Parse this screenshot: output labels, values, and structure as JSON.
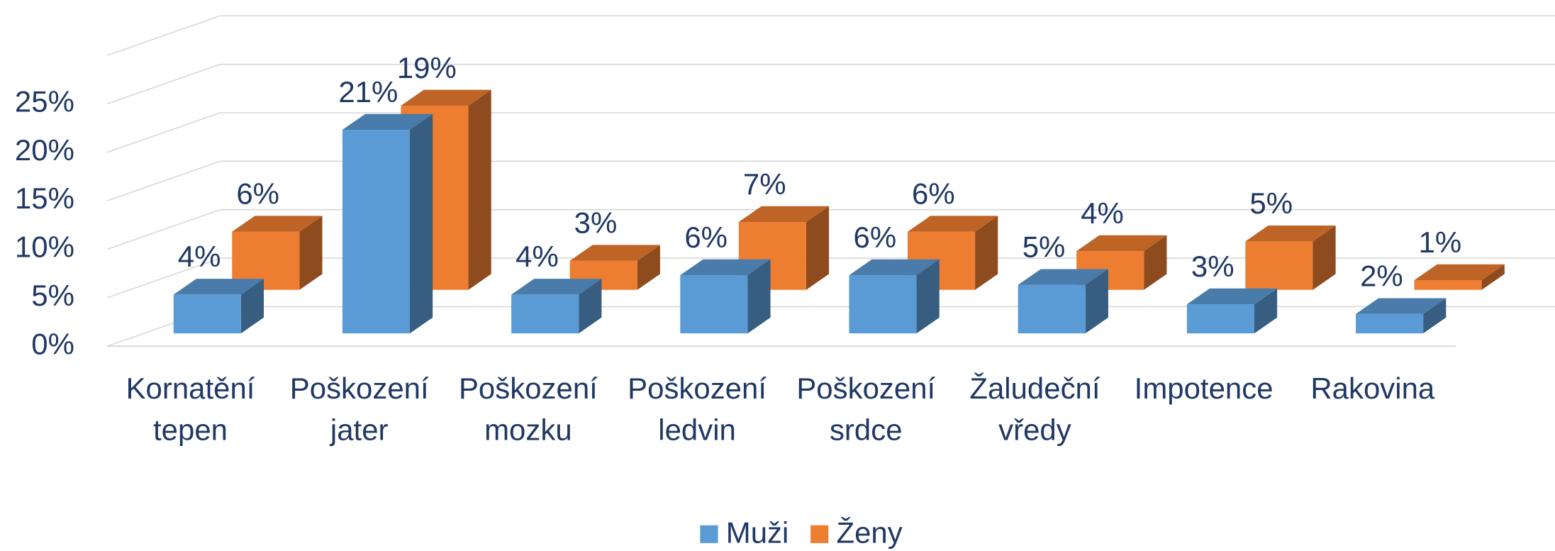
{
  "chart_data": {
    "type": "bar3d",
    "categories": [
      "Kornatění tepen",
      "Poškození jater",
      "Poškození mozku",
      "Poškození ledvin",
      "Poškození srdce",
      "Žaludeční vředy",
      "Impotence",
      "Rakovina"
    ],
    "series": [
      {
        "name": "Muži",
        "color": "#5b9bd5",
        "values": [
          4,
          21,
          4,
          6,
          6,
          5,
          3,
          2
        ],
        "value_labels": [
          "4%",
          "21%",
          "4%",
          "6%",
          "6%",
          "5%",
          "3%",
          "2%"
        ]
      },
      {
        "name": "Ženy",
        "color": "#ed7d31",
        "values": [
          6,
          19,
          3,
          7,
          6,
          4,
          5,
          1
        ],
        "value_labels": [
          "6%",
          "19%",
          "3%",
          "7%",
          "6%",
          "4%",
          "5%",
          "1%"
        ]
      }
    ],
    "ylim": [
      0,
      30
    ],
    "yticks": [
      {
        "value": 0,
        "label": "0%"
      },
      {
        "value": 5,
        "label": "5%"
      },
      {
        "value": 10,
        "label": "10%"
      },
      {
        "value": 15,
        "label": "15%"
      },
      {
        "value": 20,
        "label": "20%"
      },
      {
        "value": 25,
        "label": "25%"
      }
    ],
    "grid": true,
    "legend": "bottom"
  }
}
